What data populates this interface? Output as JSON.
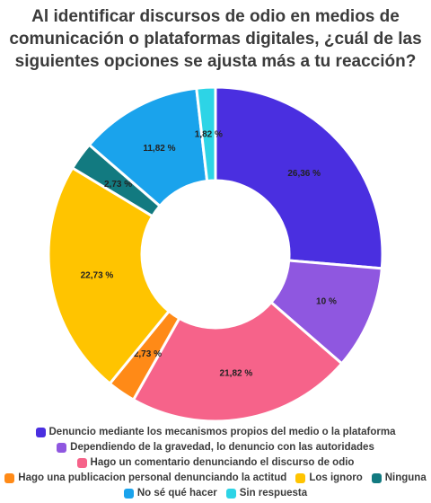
{
  "chart_data": {
    "type": "pie",
    "donut": true,
    "title_lines": [
      "Al identificar discursos de odio en medios de",
      "comunicación o plataformas digitales, ¿cuál de las",
      "siguientes opciones se ajusta más a tu reacción?"
    ],
    "slices": [
      {
        "name": "Denuncio mediante los mecanismos propios del medio o la plataforma",
        "value": 26.36,
        "label": "26,36 %",
        "color": "#4a2fe0"
      },
      {
        "name": "Dependiendo de la gravedad, lo denuncio con las autoridades",
        "value": 10,
        "label": "10 %",
        "color": "#8f57e0"
      },
      {
        "name": "Hago un comentario denunciando el discurso de odio",
        "value": 21.82,
        "label": "21,82 %",
        "color": "#f6638a"
      },
      {
        "name": "Hago una publicacion personal denunciando la actitud",
        "value": 2.73,
        "label": "2,73 %",
        "color": "#ff8a17"
      },
      {
        "name": "Los ignoro",
        "value": 22.73,
        "label": "22,73 %",
        "color": "#ffc400"
      },
      {
        "name": "Ninguna",
        "value": 2.73,
        "label": "2,73 %",
        "color": "#127a80"
      },
      {
        "name": "No sé qué hacer",
        "value": 11.82,
        "label": "11,82 %",
        "color": "#1aa3ec"
      },
      {
        "name": "Sin respuesta",
        "value": 1.82,
        "label": "1,82 %",
        "color": "#2dd4e6"
      }
    ],
    "legend_position": "bottom"
  }
}
